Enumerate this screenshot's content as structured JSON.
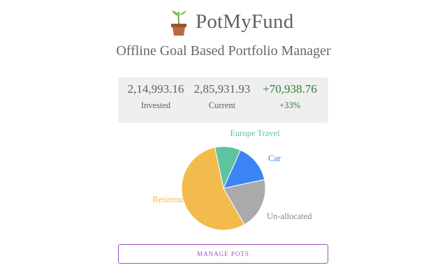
{
  "header": {
    "app_name": "PotMyFund",
    "logo_icon": "potted-plant-icon",
    "subtitle": "Offline Goal Based Portfolio Manager"
  },
  "summary": {
    "invested": {
      "value": "2,14,993.16",
      "label": "Invested"
    },
    "current": {
      "value": "2,85,931.93",
      "label": "Current"
    },
    "gain": {
      "value": "+70,938.76",
      "label": "+33%",
      "color": "#2e7d32"
    }
  },
  "chart_data": {
    "type": "pie",
    "series": [
      {
        "name": "Europe Travel",
        "percent": 10,
        "color": "#5ec4a0"
      },
      {
        "name": "Car",
        "percent": 15,
        "color": "#3b83f6"
      },
      {
        "name": "Un-allocated",
        "percent": 20,
        "color": "#aaaaaa"
      },
      {
        "name": "Retirement",
        "percent": 55,
        "color": "#f2bb4c"
      }
    ]
  },
  "actions": {
    "manage_pots_label": "MANAGE POTS",
    "manage_pots_color": "#9c4fc4"
  }
}
